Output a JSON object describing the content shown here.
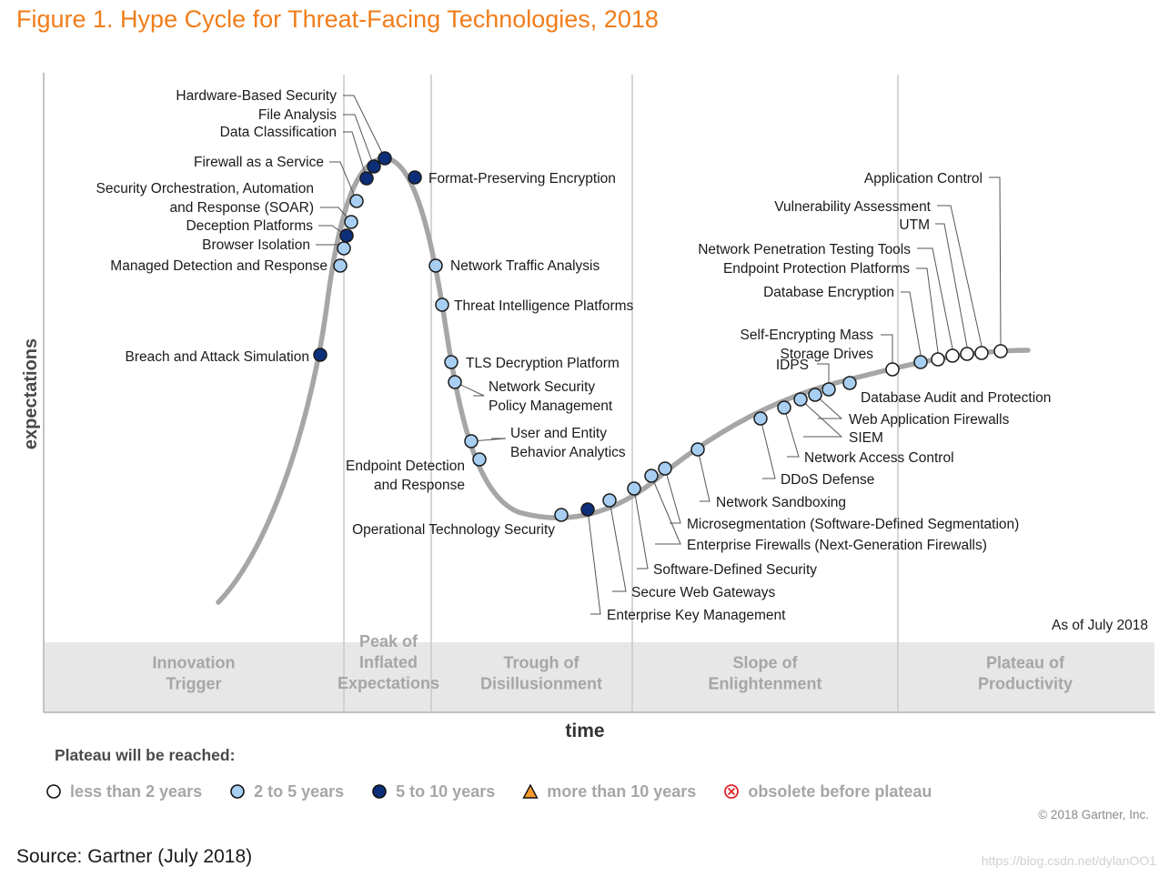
{
  "figure_title": "Figure 1. Hype Cycle for Threat-Facing Technologies, 2018",
  "colors": {
    "title": "#f07d1a",
    "curve": "#a6a6a6",
    "less_than_2_years": "#ffffff",
    "2_to_5_years": "#a8cff2",
    "5_to_10_years": "#0d2f7a",
    "more_than_10_years": "#f39a2b",
    "obsolete": "#e0252b",
    "phase_band": "#e7e7e7"
  },
  "chart_data": {
    "type": "scatter",
    "ylabel": "expectations",
    "xlabel": "time",
    "as_of": "As of July 2018",
    "phases": [
      {
        "name": "Innovation\nTrigger"
      },
      {
        "name": "Peak of\nInflated\nExpectations"
      },
      {
        "name": "Trough of\nDisillusionment"
      },
      {
        "name": "Slope of\nEnlightenment"
      },
      {
        "name": "Plateau of\nProductivity"
      }
    ],
    "technologies": [
      {
        "name": "Breach and Attack Simulation",
        "category": "5_to_10_years"
      },
      {
        "name": "Managed Detection and Response",
        "category": "2_to_5_years"
      },
      {
        "name": "Browser Isolation",
        "category": "2_to_5_years"
      },
      {
        "name": "Deception Platforms",
        "category": "5_to_10_years"
      },
      {
        "name": "Security Orchestration, Automation\nand Response (SOAR)",
        "category": "2_to_5_years"
      },
      {
        "name": "Firewall as a Service",
        "category": "2_to_5_years"
      },
      {
        "name": "Data Classification",
        "category": "5_to_10_years"
      },
      {
        "name": "File Analysis",
        "category": "5_to_10_years"
      },
      {
        "name": "Hardware-Based Security",
        "category": "5_to_10_years"
      },
      {
        "name": "Format-Preserving Encryption",
        "category": "5_to_10_years"
      },
      {
        "name": "Network Traffic Analysis",
        "category": "2_to_5_years"
      },
      {
        "name": "Threat Intelligence Platforms",
        "category": "2_to_5_years"
      },
      {
        "name": "TLS Decryption Platform",
        "category": "2_to_5_years"
      },
      {
        "name": "Network Security\nPolicy Management",
        "category": "2_to_5_years"
      },
      {
        "name": "User and Entity\nBehavior Analytics",
        "category": "2_to_5_years"
      },
      {
        "name": "Endpoint Detection\nand Response",
        "category": "2_to_5_years"
      },
      {
        "name": "Operational Technology Security",
        "category": "2_to_5_years"
      },
      {
        "name": "Enterprise Key Management",
        "category": "5_to_10_years"
      },
      {
        "name": "Secure Web Gateways",
        "category": "2_to_5_years"
      },
      {
        "name": "Software-Defined Security",
        "category": "2_to_5_years"
      },
      {
        "name": "Enterprise Firewalls (Next-Generation Firewalls)",
        "category": "2_to_5_years"
      },
      {
        "name": "Microsegmentation (Software-Defined Segmentation)",
        "category": "2_to_5_years"
      },
      {
        "name": "Network Sandboxing",
        "category": "2_to_5_years"
      },
      {
        "name": "DDoS Defense",
        "category": "2_to_5_years"
      },
      {
        "name": "Network Access Control",
        "category": "2_to_5_years"
      },
      {
        "name": "SIEM",
        "category": "2_to_5_years"
      },
      {
        "name": "Web Application Firewalls",
        "category": "2_to_5_years"
      },
      {
        "name": "IDPS",
        "category": "2_to_5_years"
      },
      {
        "name": "Database Audit and Protection",
        "category": "2_to_5_years"
      },
      {
        "name": "Self-Encrypting Mass\nStorage Drives",
        "category": "less_than_2_years"
      },
      {
        "name": "Database Encryption",
        "category": "2_to_5_years"
      },
      {
        "name": "Endpoint Protection Platforms",
        "category": "less_than_2_years"
      },
      {
        "name": "Network Penetration Testing Tools",
        "category": "less_than_2_years"
      },
      {
        "name": "UTM",
        "category": "less_than_2_years"
      },
      {
        "name": "Vulnerability Assessment",
        "category": "less_than_2_years"
      },
      {
        "name": "Application Control",
        "category": "less_than_2_years"
      }
    ]
  },
  "legend": {
    "title": "Plateau will be reached:",
    "items": [
      {
        "label": "less than 2 years",
        "category": "less_than_2_years",
        "icon": "hollow-circle-icon"
      },
      {
        "label": "2 to 5 years",
        "category": "2_to_5_years",
        "icon": "light-blue-circle-icon"
      },
      {
        "label": "5 to 10 years",
        "category": "5_to_10_years",
        "icon": "dark-blue-circle-icon"
      },
      {
        "label": "more than 10 years",
        "category": "more_than_10_years",
        "icon": "orange-triangle-icon"
      },
      {
        "label": "obsolete before plateau",
        "category": "obsolete",
        "icon": "red-x-circle-icon"
      }
    ]
  },
  "copyright": "© 2018 Gartner, Inc.",
  "source": "Source: Gartner (July 2018)",
  "watermark": "https://blog.csdn.net/dylanOO1"
}
